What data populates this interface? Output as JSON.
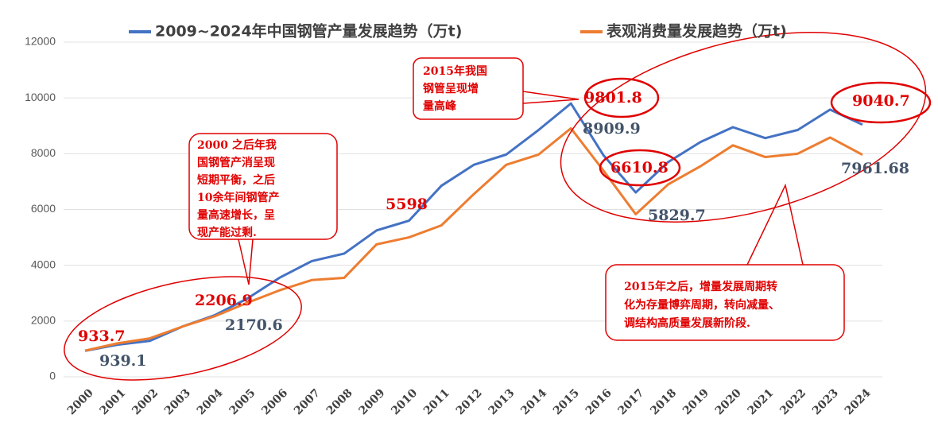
{
  "chart_data": {
    "type": "line",
    "categories": [
      "2000",
      "2001",
      "2002",
      "2003",
      "2004",
      "2005",
      "2006",
      "2007",
      "2008",
      "2009",
      "2010",
      "2011",
      "2012",
      "2013",
      "2014",
      "2015",
      "2016",
      "2017",
      "2018",
      "2019",
      "2020",
      "2021",
      "2022",
      "2023",
      "2024"
    ],
    "series": [
      {
        "name": "2009~2024年中国钢管产量发展趋势（万t)",
        "color": "#4472c4",
        "values": [
          933.7,
          1150,
          1290,
          1800,
          2206.9,
          2800,
          3550,
          4150,
          4420,
          5250,
          5598,
          6850,
          7600,
          7970,
          8850,
          9801.8,
          7950,
          6610.8,
          7700,
          8420,
          8950,
          8560,
          8850,
          9580,
          9040.7
        ]
      },
      {
        "name": "表观消费量发展趋势（万t)",
        "color": "#ed7d31",
        "values": [
          939.1,
          1200,
          1380,
          1800,
          2170.6,
          2650,
          3100,
          3470,
          3550,
          4750,
          5000,
          5430,
          6550,
          7600,
          7970,
          8909.9,
          7400,
          5829.7,
          6900,
          7550,
          8300,
          7880,
          8000,
          8580,
          7961.68
        ]
      }
    ],
    "ylim": [
      0,
      12000
    ],
    "yticks": [
      0,
      2000,
      4000,
      6000,
      8000,
      10000,
      12000
    ],
    "grid": true,
    "annotations": [
      [
        "2000 之后年我",
        "国钢管产消呈现",
        "短期平衡，之后",
        "10余年间钢管产",
        "量高速增长，呈",
        "现产能过剩."
      ],
      [
        "2015年我国",
        "钢管呈现增",
        "量高峰"
      ],
      [
        "2015年之后，增量发展周期转",
        "化为存量博弈周期，转向减量、",
        "调结构高质量发展新阶段."
      ]
    ]
  }
}
